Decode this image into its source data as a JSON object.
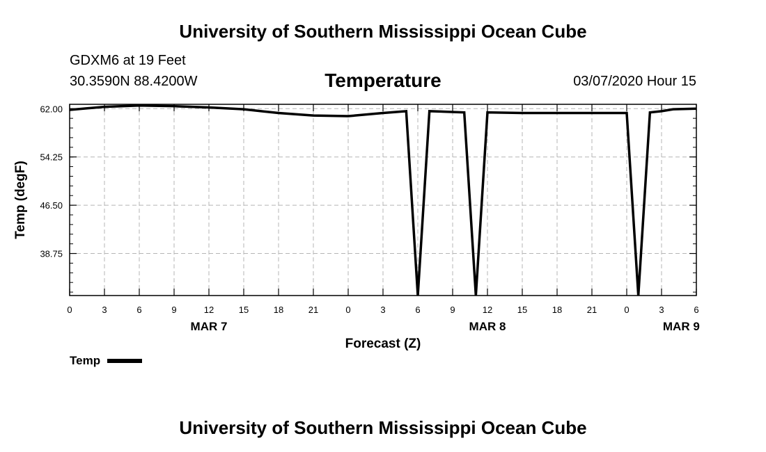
{
  "header": {
    "title": "University of Southern Mississippi Ocean Cube",
    "station": "GDXM6 at 19 Feet",
    "coords": "30.3590N 88.4200W",
    "variable": "Temperature",
    "datetime": "03/07/2020 Hour 15"
  },
  "footer": {
    "title": "University of Southern Mississippi Ocean Cube"
  },
  "legend": {
    "label": "Temp"
  },
  "chart_data": {
    "type": "line",
    "title": "Temperature",
    "xlabel": "Forecast (Z)",
    "ylabel": "Temp (degF)",
    "xlim": [
      0,
      54
    ],
    "ylim": [
      32,
      62.7
    ],
    "x_ticks": [
      0,
      3,
      6,
      9,
      12,
      15,
      18,
      21,
      24,
      27,
      30,
      33,
      36,
      39,
      42,
      45,
      48,
      51,
      54
    ],
    "x_tick_labels": [
      "0",
      "3",
      "6",
      "9",
      "12",
      "15",
      "18",
      "21",
      "0",
      "3",
      "6",
      "9",
      "12",
      "15",
      "18",
      "21",
      "0",
      "3",
      "6"
    ],
    "y_ticks": [
      38.75,
      46.5,
      54.25,
      62.0
    ],
    "y_tick_labels": [
      "38.75",
      "46.50",
      "54.25",
      "62.00"
    ],
    "date_labels": [
      {
        "x": 12,
        "label": "MAR 7"
      },
      {
        "x": 36,
        "label": "MAR 8"
      },
      {
        "x": 52.7,
        "label": "MAR 9"
      }
    ],
    "series": [
      {
        "name": "Temp",
        "color": "#000000",
        "x": [
          0,
          3,
          6,
          9,
          12,
          15,
          18,
          21,
          24,
          27,
          29,
          30,
          31,
          34,
          35,
          36,
          39,
          42,
          45,
          48,
          49,
          50,
          51,
          52,
          54
        ],
        "y": [
          61.8,
          62.3,
          62.5,
          62.4,
          62.2,
          61.9,
          61.3,
          60.9,
          60.8,
          61.3,
          61.6,
          32,
          61.6,
          61.4,
          32,
          61.4,
          61.3,
          61.3,
          61.3,
          61.3,
          32,
          61.4,
          61.6,
          61.9,
          62.0
        ]
      }
    ]
  }
}
